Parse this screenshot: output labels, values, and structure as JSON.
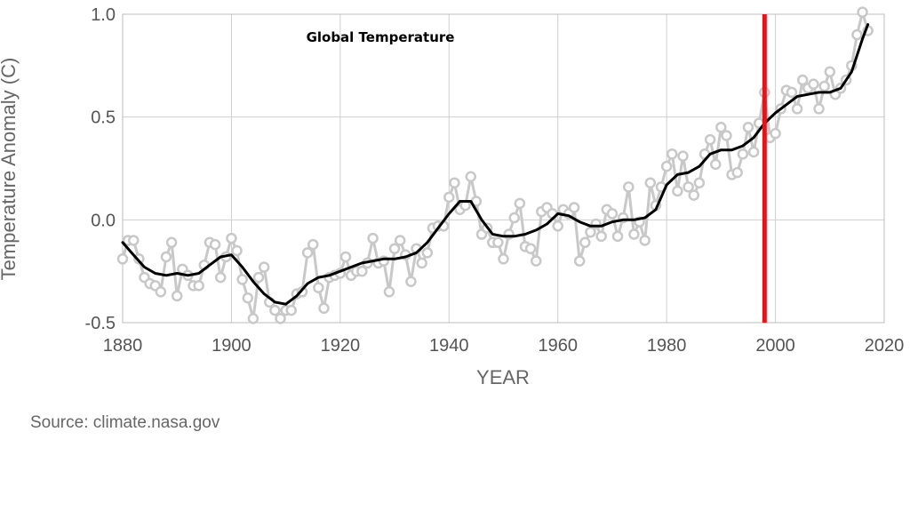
{
  "source_text": "Source: climate.nasa.gov",
  "chart_data": {
    "type": "line",
    "title": "Global Temperature",
    "xlabel": "YEAR",
    "ylabel": "Temperature Anomaly (C)",
    "xlim": [
      1880,
      2020
    ],
    "ylim": [
      -0.5,
      1.0
    ],
    "x_ticks": [
      1880,
      1900,
      1920,
      1940,
      1960,
      1980,
      2000,
      2020
    ],
    "y_ticks": [
      -0.5,
      0.0,
      0.5,
      1.0
    ],
    "y_tick_labels": [
      "-0.5",
      "0.0",
      "0.5",
      "1.0"
    ],
    "grid": true,
    "marker_line": {
      "x": 1998,
      "color": "#e0161b"
    },
    "colors": {
      "annual": "#c8c8c8",
      "smoothed": "#000000",
      "grid": "#cfcfcf"
    },
    "series": [
      {
        "key": "annual",
        "x": [
          1880,
          1881,
          1882,
          1883,
          1884,
          1885,
          1886,
          1887,
          1888,
          1889,
          1890,
          1891,
          1892,
          1893,
          1894,
          1895,
          1896,
          1897,
          1898,
          1899,
          1900,
          1901,
          1902,
          1903,
          1904,
          1905,
          1906,
          1907,
          1908,
          1909,
          1910,
          1911,
          1912,
          1913,
          1914,
          1915,
          1916,
          1917,
          1918,
          1919,
          1920,
          1921,
          1922,
          1923,
          1924,
          1925,
          1926,
          1927,
          1928,
          1929,
          1930,
          1931,
          1932,
          1933,
          1934,
          1935,
          1936,
          1937,
          1938,
          1939,
          1940,
          1941,
          1942,
          1943,
          1944,
          1945,
          1946,
          1947,
          1948,
          1949,
          1950,
          1951,
          1952,
          1953,
          1954,
          1955,
          1956,
          1957,
          1958,
          1959,
          1960,
          1961,
          1962,
          1963,
          1964,
          1965,
          1966,
          1967,
          1968,
          1969,
          1970,
          1971,
          1972,
          1973,
          1974,
          1975,
          1976,
          1977,
          1978,
          1979,
          1980,
          1981,
          1982,
          1983,
          1984,
          1985,
          1986,
          1987,
          1988,
          1989,
          1990,
          1991,
          1992,
          1993,
          1994,
          1995,
          1996,
          1997,
          1998,
          1999,
          2000,
          2001,
          2002,
          2003,
          2004,
          2005,
          2006,
          2007,
          2008,
          2009,
          2010,
          2011,
          2012,
          2013,
          2014,
          2015,
          2016,
          2017
        ],
        "values": [
          -0.19,
          -0.1,
          -0.1,
          -0.19,
          -0.28,
          -0.31,
          -0.32,
          -0.35,
          -0.18,
          -0.11,
          -0.37,
          -0.24,
          -0.27,
          -0.32,
          -0.32,
          -0.22,
          -0.11,
          -0.12,
          -0.28,
          -0.18,
          -0.09,
          -0.15,
          -0.29,
          -0.38,
          -0.48,
          -0.28,
          -0.23,
          -0.4,
          -0.44,
          -0.48,
          -0.44,
          -0.44,
          -0.36,
          -0.35,
          -0.16,
          -0.12,
          -0.33,
          -0.43,
          -0.28,
          -0.27,
          -0.26,
          -0.18,
          -0.27,
          -0.25,
          -0.25,
          -0.21,
          -0.09,
          -0.21,
          -0.2,
          -0.35,
          -0.14,
          -0.1,
          -0.17,
          -0.3,
          -0.14,
          -0.21,
          -0.16,
          -0.04,
          -0.03,
          -0.03,
          0.11,
          0.18,
          0.05,
          0.07,
          0.21,
          0.09,
          -0.07,
          -0.04,
          -0.11,
          -0.11,
          -0.19,
          -0.07,
          0.01,
          0.08,
          -0.13,
          -0.14,
          -0.2,
          0.04,
          0.06,
          0.03,
          -0.03,
          0.05,
          0.03,
          0.06,
          -0.2,
          -0.11,
          -0.06,
          -0.02,
          -0.08,
          0.05,
          0.03,
          -0.08,
          0.01,
          0.16,
          -0.07,
          -0.01,
          -0.1,
          0.18,
          0.07,
          0.16,
          0.26,
          0.32,
          0.14,
          0.31,
          0.16,
          0.12,
          0.18,
          0.32,
          0.39,
          0.27,
          0.45,
          0.41,
          0.22,
          0.23,
          0.32,
          0.45,
          0.33,
          0.47,
          0.62,
          0.4,
          0.42,
          0.54,
          0.63,
          0.62,
          0.54,
          0.68,
          0.64,
          0.66,
          0.54,
          0.65,
          0.72,
          0.61,
          0.64,
          0.68,
          0.75,
          0.9,
          1.01,
          0.92
        ]
      },
      {
        "key": "smoothed",
        "x": [
          1880,
          1882,
          1884,
          1886,
          1888,
          1890,
          1892,
          1894,
          1896,
          1898,
          1900,
          1902,
          1904,
          1906,
          1908,
          1910,
          1912,
          1914,
          1916,
          1918,
          1920,
          1922,
          1924,
          1926,
          1928,
          1930,
          1932,
          1934,
          1936,
          1938,
          1940,
          1942,
          1944,
          1946,
          1948,
          1950,
          1952,
          1954,
          1956,
          1958,
          1960,
          1962,
          1964,
          1966,
          1968,
          1970,
          1972,
          1974,
          1976,
          1978,
          1980,
          1982,
          1984,
          1986,
          1988,
          1990,
          1992,
          1994,
          1996,
          1998,
          2000,
          2002,
          2004,
          2006,
          2008,
          2010,
          2012,
          2014,
          2016,
          2017
        ],
        "values": [
          -0.11,
          -0.17,
          -0.23,
          -0.26,
          -0.27,
          -0.26,
          -0.27,
          -0.26,
          -0.22,
          -0.18,
          -0.17,
          -0.23,
          -0.3,
          -0.36,
          -0.4,
          -0.41,
          -0.37,
          -0.31,
          -0.28,
          -0.27,
          -0.25,
          -0.23,
          -0.21,
          -0.2,
          -0.19,
          -0.19,
          -0.18,
          -0.16,
          -0.11,
          -0.04,
          0.03,
          0.09,
          0.09,
          0.0,
          -0.07,
          -0.08,
          -0.08,
          -0.07,
          -0.05,
          -0.02,
          0.03,
          0.02,
          -0.01,
          -0.03,
          -0.03,
          -0.01,
          0.0,
          0.0,
          0.01,
          0.05,
          0.17,
          0.22,
          0.23,
          0.26,
          0.32,
          0.34,
          0.34,
          0.36,
          0.4,
          0.47,
          0.52,
          0.56,
          0.6,
          0.61,
          0.62,
          0.62,
          0.64,
          0.72,
          0.88,
          0.95
        ]
      }
    ]
  }
}
